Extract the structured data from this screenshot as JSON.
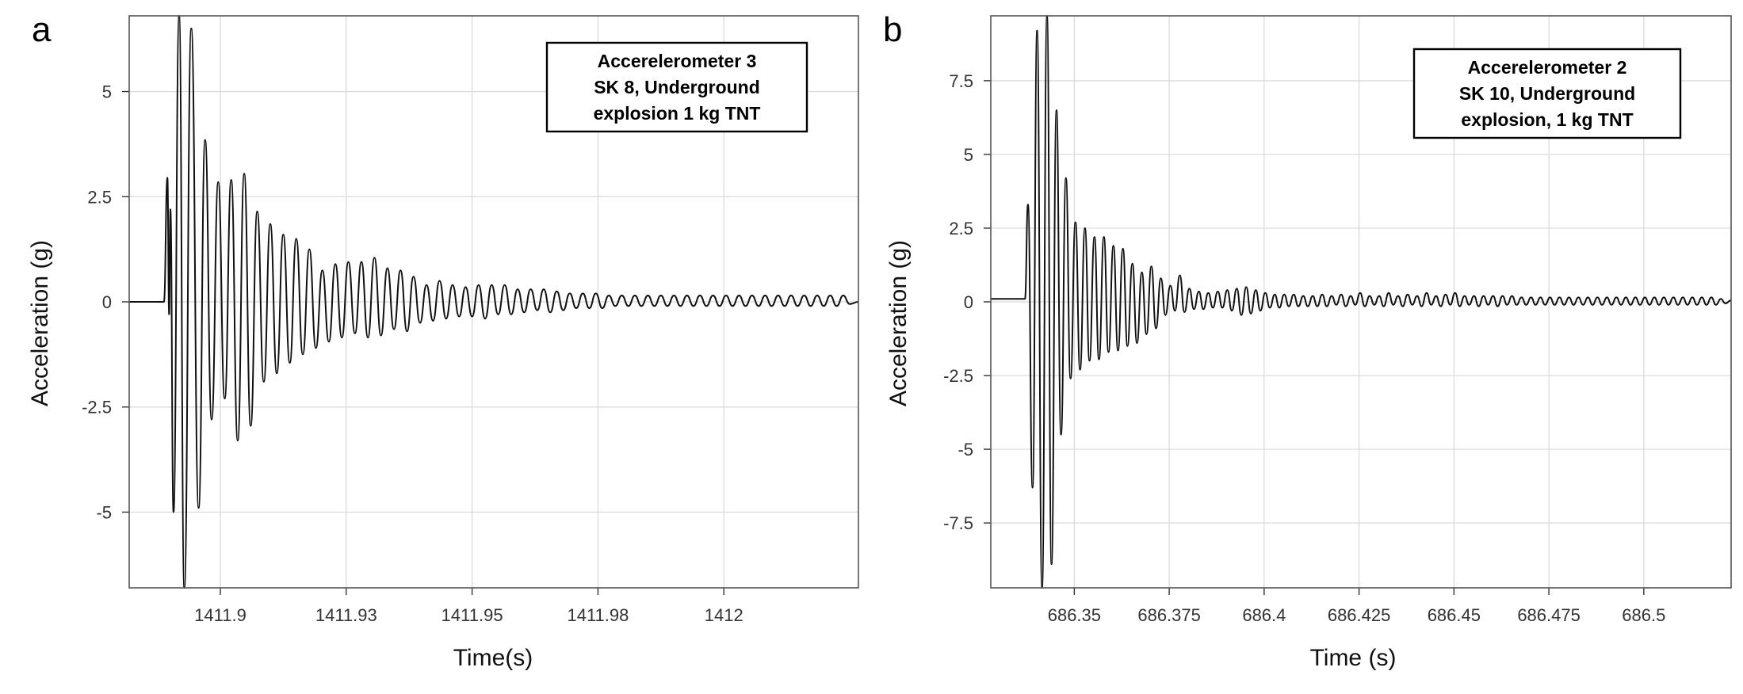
{
  "chart_data": [
    {
      "panel_label": "a",
      "type": "line",
      "xlabel": "Time(s)",
      "ylabel": "Acceleration (g)",
      "xlim": [
        1411.875,
        1412.043
      ],
      "ylim": [
        -6.8,
        6.8
      ],
      "x_ticks": [
        {
          "value": 1411.896,
          "label": "1411.9"
        },
        {
          "value": 1411.925,
          "label": "1411.93"
        },
        {
          "value": 1411.954,
          "label": "1411.95"
        },
        {
          "value": 1411.983,
          "label": "1411.98"
        },
        {
          "value": 1412.012,
          "label": "1412"
        }
      ],
      "y_ticks": [
        {
          "value": 5,
          "label": "5"
        },
        {
          "value": 2.5,
          "label": "2.5"
        },
        {
          "value": 0,
          "label": "0"
        },
        {
          "value": -2.5,
          "label": "-2.5"
        },
        {
          "value": -5,
          "label": "-5"
        }
      ],
      "grid": true,
      "legend_position": "top-right",
      "legend_lines": [
        "Accerelerometer 3",
        "SK 8, Underground",
        "explosion 1 kg TNT"
      ],
      "series": [
        {
          "x": [
            1411.875,
            1411.883,
            1411.8838,
            1411.8842,
            1411.8845,
            1411.8852,
            1411.8865,
            1411.8877,
            1411.8893,
            1411.891,
            1411.8925,
            1411.894,
            1411.8955,
            1411.897,
            1411.8985,
            1411.9,
            1411.9015,
            1411.903,
            1411.9045,
            1411.906,
            1411.9075,
            1411.909,
            1411.9105,
            1411.912,
            1411.9135,
            1411.915,
            1411.9165,
            1411.918,
            1411.9195,
            1411.921,
            1411.9225,
            1411.924,
            1411.9255,
            1411.927,
            1411.9285,
            1411.93,
            1411.9315,
            1411.933,
            1411.9345,
            1411.936,
            1411.9375,
            1411.939,
            1411.9405,
            1411.942,
            1411.9435,
            1411.945,
            1411.9465,
            1411.948,
            1411.9495,
            1411.951,
            1411.9525,
            1411.954,
            1411.9555,
            1411.957,
            1411.9585,
            1411.96,
            1411.9615,
            1411.963,
            1411.9645,
            1411.966,
            1411.9675,
            1411.969,
            1411.9705,
            1411.972,
            1411.9735,
            1411.975,
            1411.9765,
            1411.978,
            1411.9795,
            1411.981,
            1411.9825,
            1411.984,
            1411.9855,
            1411.987,
            1411.9885,
            1411.99,
            1411.9915,
            1411.993,
            1411.9945,
            1411.996,
            1411.9975,
            1411.999,
            1412.0005,
            1412.002,
            1412.0035,
            1412.005,
            1412.0065,
            1412.008,
            1412.0095,
            1412.011,
            1412.0125,
            1412.014,
            1412.0155,
            1412.017,
            1412.0185,
            1412.02,
            1412.0215,
            1412.023,
            1412.0245,
            1412.026,
            1412.0275,
            1412.029,
            1412.0305,
            1412.032,
            1412.0335,
            1412.035,
            1412.0365,
            1412.038,
            1412.0395,
            1412.041,
            1412.043
          ],
          "values": [
            0,
            0,
            2.95,
            -0.3,
            2.2,
            -5.0,
            6.8,
            -6.8,
            6.5,
            -4.9,
            3.85,
            -2.8,
            2.85,
            -2.3,
            2.9,
            -3.3,
            3.05,
            -2.95,
            2.15,
            -1.9,
            1.85,
            -1.7,
            1.6,
            -1.45,
            1.5,
            -1.25,
            1.25,
            -1.1,
            0.75,
            -0.95,
            0.9,
            -0.85,
            0.95,
            -0.75,
            0.95,
            -0.85,
            1.05,
            -0.8,
            0.8,
            -0.65,
            0.75,
            -0.7,
            0.6,
            -0.5,
            0.4,
            -0.45,
            0.5,
            -0.4,
            0.4,
            -0.35,
            0.35,
            -0.35,
            0.4,
            -0.4,
            0.4,
            -0.3,
            0.4,
            -0.3,
            0.3,
            -0.25,
            0.3,
            -0.2,
            0.3,
            -0.25,
            0.25,
            -0.2,
            0.2,
            -0.15,
            0.2,
            -0.15,
            0.2,
            -0.15,
            0.15,
            -0.1,
            0.15,
            -0.1,
            0.15,
            -0.1,
            0.15,
            -0.1,
            0.15,
            -0.1,
            0.15,
            -0.1,
            0.15,
            -0.1,
            0.15,
            -0.1,
            0.15,
            -0.1,
            0.15,
            -0.1,
            0.15,
            -0.1,
            0.15,
            -0.1,
            0.15,
            -0.1,
            0.15,
            -0.1,
            0.15,
            -0.1,
            0.15,
            -0.1,
            0.15,
            -0.1,
            0.15,
            -0.1,
            0.15,
            -0.05,
            0
          ]
        }
      ]
    },
    {
      "panel_label": "b",
      "type": "line",
      "xlabel": "Time (s)",
      "ylabel": "Acceleration (g)",
      "xlim": [
        686.328,
        686.523
      ],
      "ylim": [
        -9.7,
        9.7
      ],
      "x_ticks": [
        {
          "value": 686.35,
          "label": "686.35"
        },
        {
          "value": 686.375,
          "label": "686.375"
        },
        {
          "value": 686.4,
          "label": "686.4"
        },
        {
          "value": 686.425,
          "label": "686.425"
        },
        {
          "value": 686.45,
          "label": "686.45"
        },
        {
          "value": 686.475,
          "label": "686.475"
        },
        {
          "value": 686.5,
          "label": "686.5"
        }
      ],
      "y_ticks": [
        {
          "value": 7.5,
          "label": "7.5"
        },
        {
          "value": 5,
          "label": "5"
        },
        {
          "value": 2.5,
          "label": "2.5"
        },
        {
          "value": 0,
          "label": "0"
        },
        {
          "value": -2.5,
          "label": "-2.5"
        },
        {
          "value": -5,
          "label": "-5"
        },
        {
          "value": -7.5,
          "label": "-7.5"
        }
      ],
      "grid": true,
      "legend_position": "top-right",
      "legend_lines": [
        "Accerelerometer 2",
        "SK 10, Underground",
        "explosion, 1 kg TNT"
      ],
      "series": [
        {
          "x": [
            686.328,
            686.337,
            686.3378,
            686.339,
            686.3402,
            686.3415,
            686.3428,
            686.344,
            686.3453,
            686.3465,
            686.3478,
            686.349,
            686.3503,
            686.3515,
            686.3528,
            686.354,
            686.3553,
            686.3565,
            686.3578,
            686.359,
            686.3603,
            686.3615,
            686.3628,
            686.364,
            686.3653,
            686.3665,
            686.3678,
            686.369,
            686.3703,
            686.3715,
            686.3728,
            686.374,
            686.3753,
            686.3765,
            686.3778,
            686.379,
            686.3803,
            686.3815,
            686.3828,
            686.384,
            686.3853,
            686.3865,
            686.3878,
            686.389,
            686.3903,
            686.3915,
            686.3928,
            686.394,
            686.3953,
            686.3965,
            686.3978,
            686.399,
            686.4003,
            686.4015,
            686.4028,
            686.404,
            686.4053,
            686.4065,
            686.4078,
            686.409,
            686.4103,
            686.4115,
            686.4128,
            686.414,
            686.4153,
            686.4165,
            686.4178,
            686.419,
            686.4203,
            686.4215,
            686.4228,
            686.424,
            686.4253,
            686.4265,
            686.4278,
            686.429,
            686.4303,
            686.4315,
            686.4328,
            686.434,
            686.4353,
            686.4365,
            686.4378,
            686.439,
            686.4403,
            686.4415,
            686.4428,
            686.444,
            686.4453,
            686.4465,
            686.4478,
            686.449,
            686.4503,
            686.4515,
            686.4528,
            686.454,
            686.4553,
            686.4565,
            686.4578,
            686.459,
            686.4603,
            686.4615,
            686.4628,
            686.464,
            686.4653,
            686.4665,
            686.4678,
            686.469,
            686.4703,
            686.4715,
            686.4728,
            686.474,
            686.4753,
            686.4765,
            686.4778,
            686.479,
            686.4803,
            686.4815,
            686.4828,
            686.484,
            686.4853,
            686.4865,
            686.4878,
            686.489,
            686.4903,
            686.4915,
            686.4928,
            686.494,
            686.4953,
            686.4965,
            686.4978,
            686.499,
            686.5003,
            686.5015,
            686.5028,
            686.504,
            686.5053,
            686.5065,
            686.5078,
            686.509,
            686.5103,
            686.5115,
            686.5128,
            686.514,
            686.5153,
            686.5165,
            686.5178,
            686.519,
            686.5203,
            686.5215,
            686.523
          ],
          "values": [
            0.1,
            0.1,
            3.3,
            -6.3,
            9.2,
            -9.7,
            9.7,
            -8.9,
            6.5,
            -4.5,
            4.2,
            -2.6,
            2.7,
            -2.3,
            2.5,
            -2.0,
            2.2,
            -1.95,
            2.2,
            -1.7,
            1.9,
            -1.65,
            1.8,
            -1.5,
            1.3,
            -1.4,
            1.0,
            -1.1,
            1.2,
            -0.9,
            0.8,
            -0.45,
            0.55,
            -0.3,
            0.9,
            -0.35,
            0.45,
            -0.25,
            0.35,
            -0.25,
            0.3,
            -0.2,
            0.35,
            -0.2,
            0.4,
            -0.3,
            0.45,
            -0.45,
            0.5,
            -0.4,
            0.4,
            -0.3,
            0.3,
            -0.2,
            0.25,
            -0.2,
            0.25,
            -0.15,
            0.25,
            -0.15,
            0.2,
            -0.15,
            0.2,
            -0.15,
            0.25,
            -0.15,
            0.2,
            -0.1,
            0.25,
            -0.15,
            0.2,
            -0.1,
            0.3,
            -0.15,
            0.2,
            -0.1,
            0.2,
            -0.15,
            0.3,
            -0.1,
            0.2,
            -0.15,
            0.25,
            -0.1,
            0.2,
            -0.15,
            0.3,
            -0.1,
            0.2,
            -0.15,
            0.25,
            -0.1,
            0.3,
            -0.15,
            0.2,
            -0.1,
            0.2,
            -0.15,
            0.2,
            -0.1,
            0.2,
            -0.15,
            0.2,
            -0.1,
            0.2,
            -0.1,
            0.15,
            -0.1,
            0.15,
            -0.1,
            0.15,
            -0.1,
            0.15,
            -0.1,
            0.15,
            -0.1,
            0.15,
            -0.1,
            0.15,
            -0.1,
            0.15,
            -0.1,
            0.15,
            -0.1,
            0.15,
            -0.1,
            0.15,
            -0.1,
            0.15,
            -0.1,
            0.15,
            -0.1,
            0.15,
            -0.1,
            0.15,
            -0.1,
            0.15,
            -0.1,
            0.15,
            -0.1,
            0.15,
            -0.1,
            0.15,
            -0.1,
            0.15,
            -0.1,
            0.15,
            -0.1,
            0.1,
            -0.05,
            0.05
          ]
        }
      ]
    }
  ]
}
